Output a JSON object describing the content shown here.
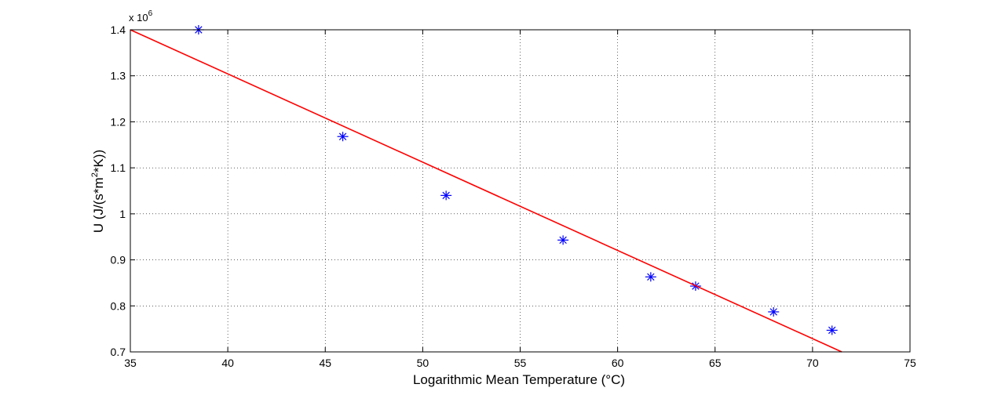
{
  "chart_data": {
    "type": "scatter",
    "title": "",
    "xlabel": "Logarithmic Mean Temperature (°C)",
    "ylabel_parts": {
      "base": "U (J/(s*m",
      "superscript": "2",
      "tail": "*K))"
    },
    "y_multiplier": {
      "base": "x 10",
      "exponent": "6"
    },
    "xlim": [
      35,
      75
    ],
    "ylim": [
      0.7,
      1.4
    ],
    "xticks": [
      35,
      40,
      45,
      50,
      55,
      60,
      65,
      70,
      75
    ],
    "yticks": [
      0.7,
      0.8,
      0.9,
      1,
      1.1,
      1.2,
      1.3,
      1.4
    ],
    "xtick_labels": [
      "35",
      "40",
      "45",
      "50",
      "55",
      "60",
      "65",
      "70",
      "75"
    ],
    "ytick_labels": [
      "0.7",
      "0.8",
      "0.9",
      "1",
      "1.1",
      "1.2",
      "1.3",
      "1.4"
    ],
    "grid": true,
    "series": [
      {
        "kind": "markers",
        "marker": "asterisk",
        "color": "#0000ff",
        "x": [
          38.5,
          45.9,
          51.2,
          57.2,
          61.7,
          64.0,
          68.0,
          71.0
        ],
        "y": [
          1.4,
          1.168,
          1.04,
          0.943,
          0.863,
          0.843,
          0.787,
          0.747
        ]
      },
      {
        "kind": "line",
        "color": "#ff0000",
        "x": [
          35,
          71.5
        ],
        "y": [
          1.4,
          0.7
        ]
      }
    ]
  }
}
